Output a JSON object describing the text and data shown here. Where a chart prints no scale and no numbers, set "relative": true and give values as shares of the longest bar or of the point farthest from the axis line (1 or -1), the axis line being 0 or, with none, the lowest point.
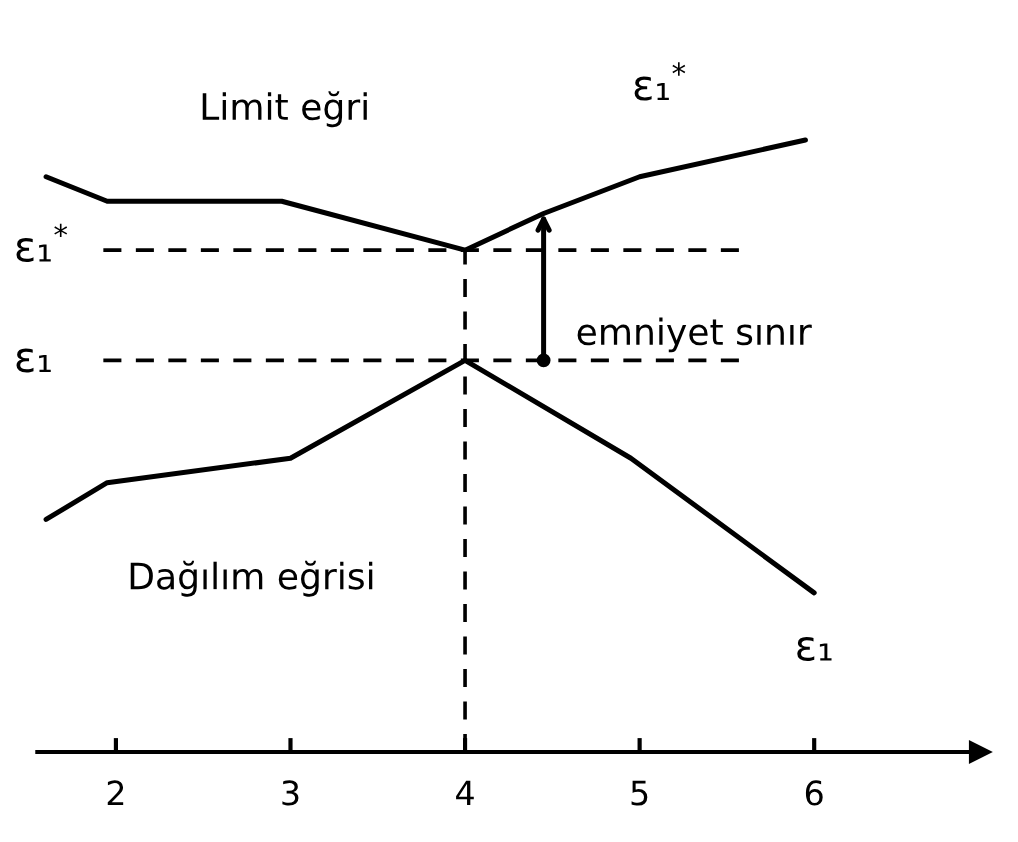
{
  "chart_data": {
    "type": "line",
    "relative": true,
    "xlim": [
      1.55,
      6.95
    ],
    "xticks": [
      2,
      3,
      4,
      5,
      6
    ],
    "series": [
      {
        "name": "Limit eğri",
        "color": "#000000",
        "x": [
          1.6,
          1.95,
          2.95,
          4,
          4.45,
          5,
          5.95
        ],
        "values": [
          0.94,
          0.9,
          0.9,
          0.82,
          0.88,
          0.94,
          1.0
        ]
      },
      {
        "name": "Dağılım eğrisi",
        "color": "#000000",
        "x": [
          1.6,
          1.95,
          3,
          4,
          4.95,
          6
        ],
        "values": [
          0.38,
          0.44,
          0.48,
          0.64,
          0.48,
          0.26
        ]
      }
    ],
    "ref_lines": [
      {
        "axis": "y",
        "value": 0.82,
        "label": "ε₁$^{*}$",
        "line_style": "dashed",
        "color": "#000000"
      },
      {
        "axis": "y",
        "value": 0.64,
        "label": "ε₁",
        "line_style": "dashed",
        "color": "#000000"
      },
      {
        "axis": "x",
        "value": 4,
        "line_style": "dashed",
        "color": "#000000"
      }
    ],
    "annotations": [
      {
        "text": "ε₁$^{*}$",
        "x": 5,
        "y": 0.94
      },
      {
        "text": "ε₁",
        "x": 6,
        "y": 0.26
      },
      {
        "text": "emniyet sınır",
        "x": 4.45,
        "y": 0.64
      }
    ],
    "grid": false,
    "legend": false,
    "marker": "none",
    "line_style": "solid"
  }
}
